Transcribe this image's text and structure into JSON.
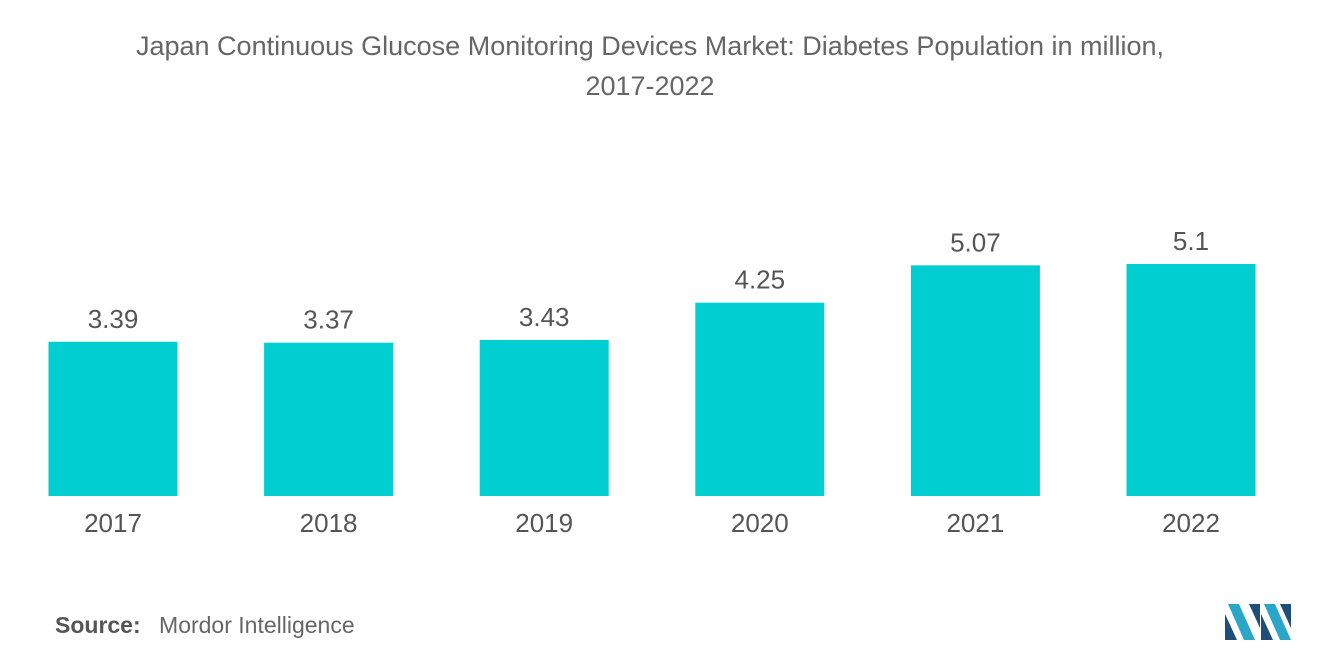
{
  "chart_data": {
    "type": "bar",
    "title_line1": "Japan Continuous Glucose Monitoring Devices Market: Diabetes Population in million,",
    "title_line2": "2017-2022",
    "categories": [
      "2017",
      "2018",
      "2019",
      "2020",
      "2021",
      "2022"
    ],
    "values": [
      3.39,
      3.37,
      3.43,
      4.25,
      5.07,
      5.1
    ],
    "value_labels": [
      "3.39",
      "3.37",
      "3.43",
      "4.25",
      "5.07",
      "5.1"
    ],
    "xlabel": "",
    "ylabel": "",
    "ylim": [
      0,
      5.1
    ],
    "grid": false,
    "legend": "none",
    "bar_color": "#00CED1"
  },
  "footer": {
    "source_label": "Source:",
    "source_value": "Mordor Intelligence"
  },
  "logo": {
    "icon": "mordor-intelligence-logo-icon",
    "colors": [
      "#1f4e79",
      "#2aa6c9"
    ]
  }
}
